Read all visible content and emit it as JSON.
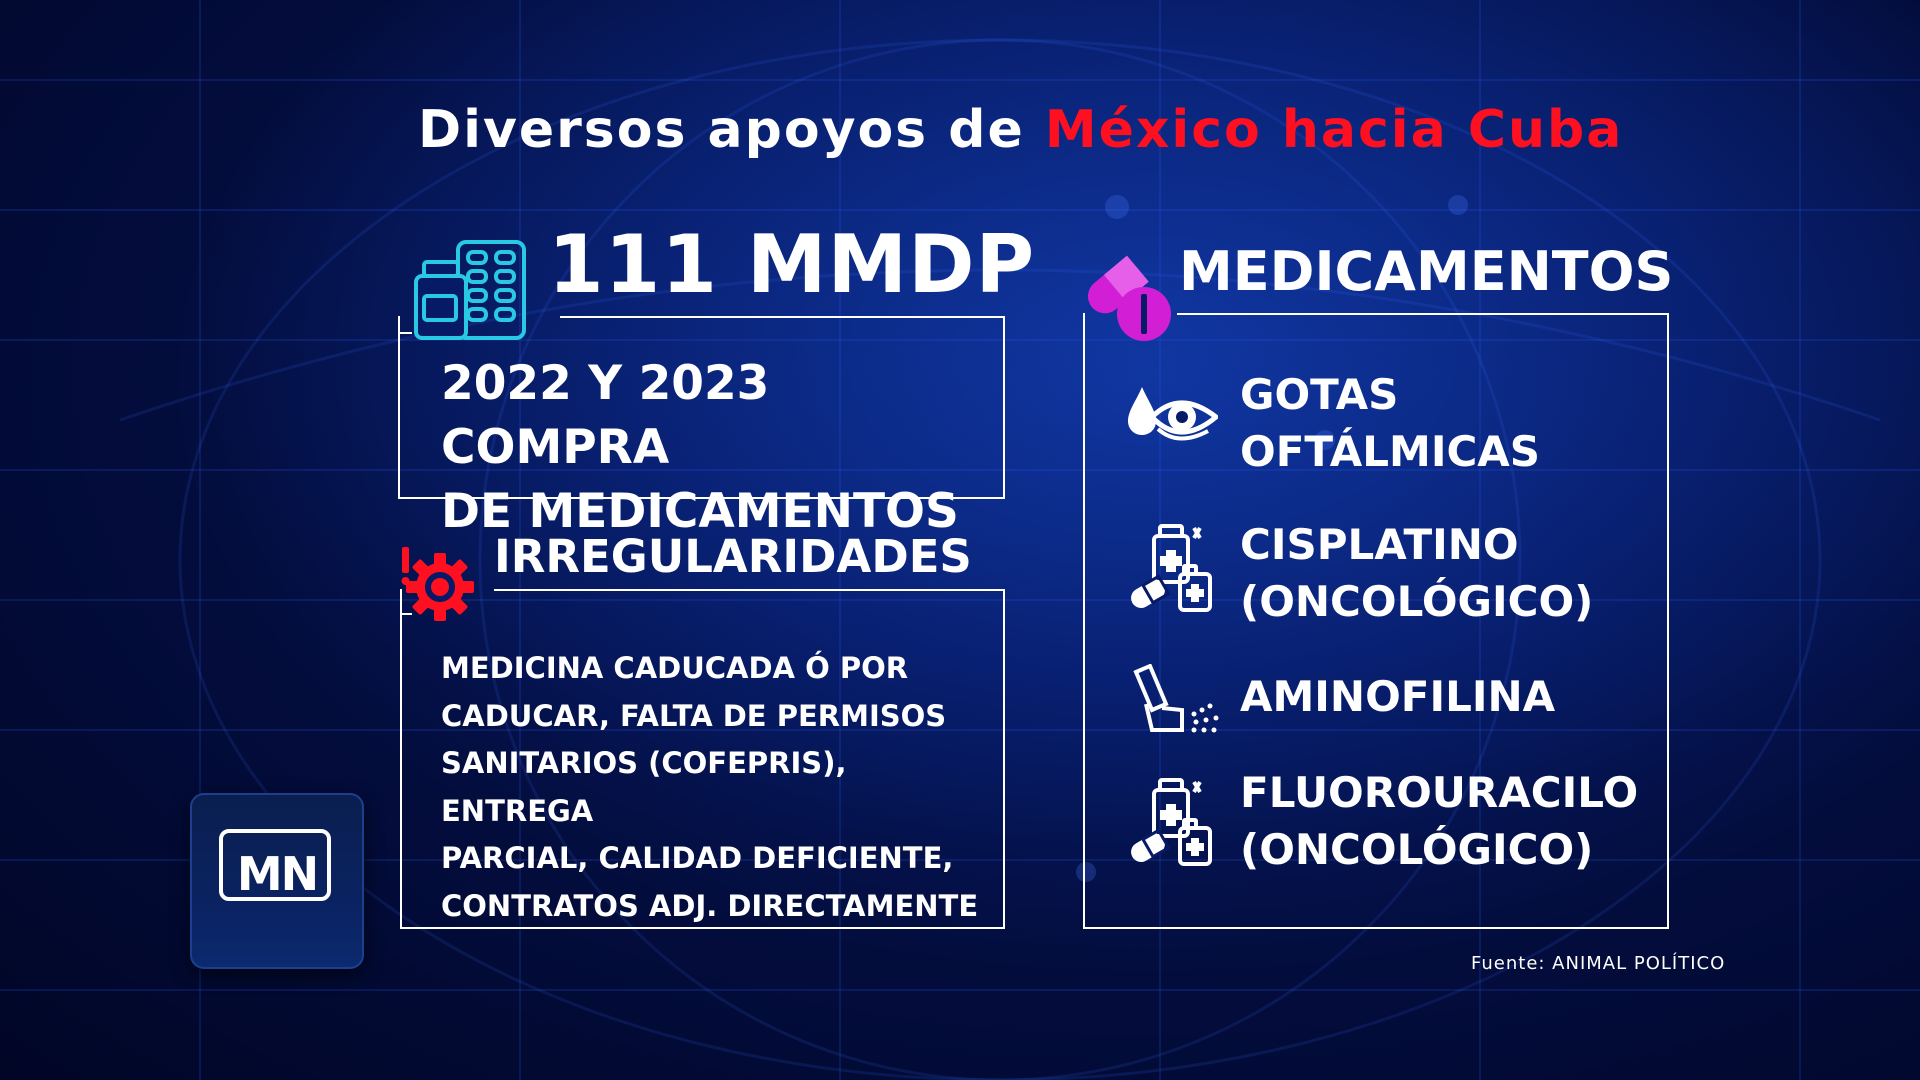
{
  "title": {
    "prefix": "Diversos apoyos de ",
    "highlight": "México hacia Cuba"
  },
  "colors": {
    "accent_red": "#ff1020",
    "icon_cyan": "#29c9e6",
    "icon_magenta": "#d21fd6",
    "background": "#061a66"
  },
  "purchase": {
    "amount": "111 MMDP",
    "line1": "2022 Y 2023 COMPRA",
    "line2": "DE MEDICAMENTOS",
    "icon": "medicine-bottle-blister-icon"
  },
  "irregularities": {
    "heading": "IRREGULARIDADES",
    "icon": "alert-gear-icon",
    "lines": [
      "MEDICINA CADUCADA Ó POR",
      "CADUCAR,  FALTA DE PERMISOS",
      "SANITARIOS (COFEPRIS), ENTREGA",
      "PARCIAL, CALIDAD DEFICIENTE,",
      "CONTRATOS ADJ. DIRECTAMENTE"
    ]
  },
  "medicines": {
    "heading": "MEDICAMENTOS",
    "icon": "pills-icon",
    "items": [
      {
        "line1": "GOTAS",
        "line2": "OFTÁLMICAS",
        "icon": "eye-drop-icon"
      },
      {
        "line1": "CISPLATINO",
        "line2": "(ONCOLÓGICO)",
        "icon": "medicine-bottles-icon"
      },
      {
        "line1": "AMINOFILINA",
        "line2": "",
        "icon": "inhaler-icon"
      },
      {
        "line1": "FLUOROURACILO",
        "line2": "(ONCOLÓGICO)",
        "icon": "medicine-bottles-icon"
      }
    ]
  },
  "source": "Fuente: ANIMAL POLÍTICO",
  "logo": {
    "text": "MN"
  }
}
